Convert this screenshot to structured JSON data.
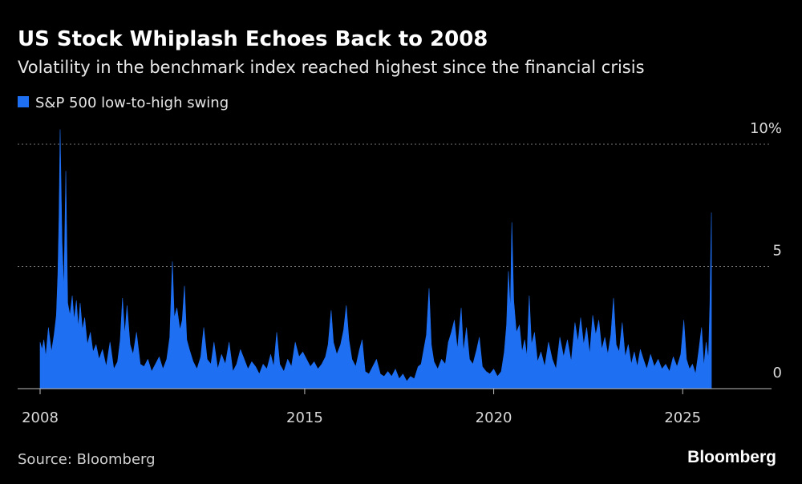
{
  "chart_data": {
    "type": "area",
    "title": "US Stock Whiplash Echoes Back to 2008",
    "subtitle": "Volatility in the benchmark index reached highest since the financial crisis",
    "source": "Source: Bloomberg",
    "brand": "Bloomberg",
    "xlim": [
      2008,
      2027.35
    ],
    "xticks": [
      2008,
      2015,
      2020,
      2025
    ],
    "ylim": [
      0,
      10.7
    ],
    "yticks": [
      0,
      5,
      {
        "value": 10,
        "label": "10%"
      }
    ],
    "grid": true,
    "series": [
      {
        "name": "S&P 500 low-to-high swing",
        "color": "#1f6ff2",
        "x": [
          2008.0,
          2008.05,
          2008.1,
          2008.15,
          2008.22,
          2008.3,
          2008.37,
          2008.43,
          2008.47,
          2008.5,
          2008.53,
          2008.58,
          2008.63,
          2008.68,
          2008.73,
          2008.79,
          2008.85,
          2008.9,
          2008.96,
          2009.01,
          2009.06,
          2009.12,
          2009.18,
          2009.25,
          2009.33,
          2009.4,
          2009.48,
          2009.56,
          2009.65,
          2009.75,
          2009.85,
          2009.95,
          2010.05,
          2010.12,
          2010.18,
          2010.24,
          2010.3,
          2010.38,
          2010.46,
          2010.55,
          2010.65,
          2010.75,
          2010.85,
          2010.95,
          2011.05,
          2011.15,
          2011.25,
          2011.35,
          2011.43,
          2011.5,
          2011.55,
          2011.62,
          2011.7,
          2011.76,
          2011.82,
          2011.88,
          2011.95,
          2012.05,
          2012.15,
          2012.25,
          2012.33,
          2012.42,
          2012.52,
          2012.6,
          2012.7,
          2012.8,
          2012.9,
          2013.0,
          2013.1,
          2013.2,
          2013.3,
          2013.4,
          2013.5,
          2013.6,
          2013.7,
          2013.8,
          2013.9,
          2014.0,
          2014.1,
          2014.18,
          2014.26,
          2014.34,
          2014.45,
          2014.55,
          2014.65,
          2014.75,
          2014.85,
          2014.95,
          2015.05,
          2015.15,
          2015.25,
          2015.35,
          2015.45,
          2015.55,
          2015.62,
          2015.7,
          2015.76,
          2015.85,
          2015.95,
          2016.03,
          2016.1,
          2016.17,
          2016.25,
          2016.35,
          2016.45,
          2016.52,
          2016.6,
          2016.7,
          2016.8,
          2016.9,
          2017.0,
          2017.1,
          2017.2,
          2017.3,
          2017.4,
          2017.5,
          2017.6,
          2017.7,
          2017.8,
          2017.9,
          2018.0,
          2018.08,
          2018.15,
          2018.22,
          2018.29,
          2018.35,
          2018.42,
          2018.52,
          2018.62,
          2018.72,
          2018.8,
          2018.88,
          2018.96,
          2019.04,
          2019.14,
          2019.2,
          2019.28,
          2019.36,
          2019.45,
          2019.55,
          2019.62,
          2019.7,
          2019.8,
          2019.9,
          2020.0,
          2020.1,
          2020.2,
          2020.28,
          2020.34,
          2020.39,
          2020.44,
          2020.48,
          2020.53,
          2020.6,
          2020.68,
          2020.75,
          2020.82,
          2020.88,
          2020.94,
          2021.0,
          2021.08,
          2021.16,
          2021.25,
          2021.35,
          2021.45,
          2021.55,
          2021.65,
          2021.75,
          2021.85,
          2021.95,
          2022.05,
          2022.15,
          2022.23,
          2022.3,
          2022.38,
          2022.46,
          2022.54,
          2022.62,
          2022.7,
          2022.78,
          2022.86,
          2022.94,
          2023.02,
          2023.1,
          2023.17,
          2023.24,
          2023.32,
          2023.4,
          2023.48,
          2023.56,
          2023.64,
          2023.72,
          2023.8,
          2023.88,
          2023.96,
          2024.05,
          2024.15,
          2024.25,
          2024.35,
          2024.45,
          2024.55,
          2024.65,
          2024.75,
          2024.85,
          2024.95,
          2025.03,
          2025.1,
          2025.18,
          2025.26,
          2025.34,
          2025.42,
          2025.5,
          2025.56,
          2025.62,
          2025.68,
          2025.72,
          2025.76
        ],
        "values": [
          1.9,
          1.6,
          2.0,
          1.3,
          2.5,
          1.5,
          2.2,
          3.0,
          4.7,
          7.0,
          10.6,
          6.0,
          4.0,
          8.9,
          3.5,
          3.0,
          3.8,
          2.8,
          3.6,
          2.5,
          3.5,
          2.4,
          2.9,
          1.8,
          2.3,
          1.5,
          1.8,
          1.2,
          1.6,
          0.9,
          1.9,
          0.8,
          1.1,
          2.0,
          3.7,
          2.2,
          3.4,
          1.8,
          1.4,
          2.3,
          1.0,
          0.9,
          1.2,
          0.7,
          1.0,
          1.3,
          0.8,
          1.2,
          2.1,
          5.2,
          2.9,
          3.3,
          2.4,
          2.8,
          4.2,
          2.0,
          1.6,
          1.1,
          0.8,
          1.3,
          2.5,
          1.2,
          1.0,
          1.9,
          0.8,
          1.4,
          1.0,
          1.9,
          0.7,
          1.0,
          1.6,
          1.2,
          0.8,
          1.1,
          0.9,
          0.6,
          1.0,
          0.8,
          1.4,
          0.9,
          2.3,
          1.0,
          0.7,
          1.2,
          0.9,
          1.9,
          1.3,
          1.5,
          1.2,
          0.9,
          1.1,
          0.8,
          1.0,
          1.3,
          1.8,
          3.2,
          1.9,
          1.4,
          1.8,
          2.4,
          3.4,
          2.0,
          1.2,
          0.9,
          1.6,
          2.0,
          0.7,
          0.6,
          0.9,
          1.2,
          0.6,
          0.5,
          0.7,
          0.5,
          0.8,
          0.4,
          0.6,
          0.3,
          0.5,
          0.4,
          0.9,
          1.0,
          1.6,
          2.2,
          4.1,
          1.8,
          1.1,
          0.8,
          1.2,
          1.0,
          1.9,
          2.3,
          2.8,
          1.6,
          3.3,
          1.5,
          2.5,
          1.2,
          1.0,
          1.6,
          2.1,
          0.9,
          0.7,
          0.6,
          0.8,
          0.5,
          0.7,
          1.5,
          2.6,
          4.8,
          3.2,
          6.8,
          3.6,
          2.3,
          2.6,
          1.5,
          2.0,
          1.3,
          3.8,
          1.8,
          2.3,
          1.1,
          1.5,
          0.9,
          1.9,
          1.2,
          0.8,
          2.1,
          1.3,
          2.0,
          1.1,
          2.7,
          1.9,
          2.9,
          1.8,
          2.5,
          1.4,
          3.0,
          2.2,
          2.8,
          1.6,
          2.1,
          1.4,
          2.2,
          3.7,
          1.8,
          1.5,
          2.7,
          1.3,
          1.8,
          1.0,
          1.5,
          0.9,
          1.6,
          1.2,
          0.8,
          1.4,
          0.9,
          1.2,
          0.8,
          1.0,
          0.7,
          1.3,
          0.9,
          1.4,
          2.8,
          1.2,
          0.8,
          1.0,
          0.6,
          1.5,
          2.5,
          0.9,
          1.9,
          1.2,
          3.5,
          7.2
        ]
      }
    ]
  }
}
